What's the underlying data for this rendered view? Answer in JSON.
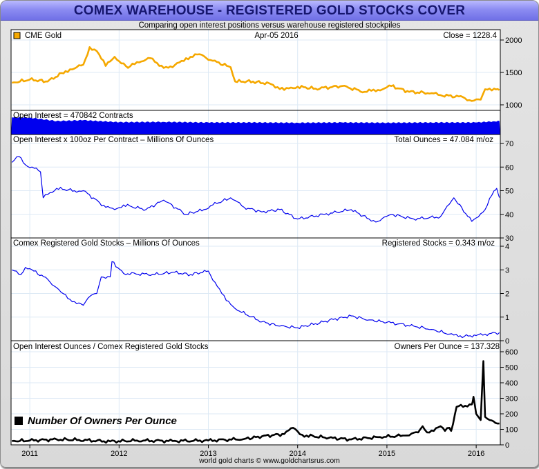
{
  "title": "COMEX WAREHOUSE - REGISTERED GOLD STOCKS COVER",
  "subtitle": "Comparing open interest positions versus warehouse registered stockpiles",
  "footer": "world gold charts © www.goldchartsrus.com",
  "colors": {
    "gold": "#f5a800",
    "blue": "#0000ee",
    "black": "#000000",
    "grid": "#dde9f5",
    "titlebar": "#8080ee",
    "title_text": "#16166e"
  },
  "chart_data": [
    {
      "type": "line",
      "panel": "gold_price",
      "legend": "CME Gold",
      "date_label": "Apr-05  2016",
      "value_label": "Close = 1228.4",
      "ylim": [
        1000,
        2000
      ],
      "yticks": [
        1000,
        1500,
        2000
      ],
      "x": [
        2010.8,
        2011.0,
        2011.2,
        2011.4,
        2011.5,
        2011.6,
        2011.67,
        2011.75,
        2011.85,
        2011.95,
        2012.1,
        2012.2,
        2012.35,
        2012.45,
        2012.6,
        2012.75,
        2012.9,
        2013.05,
        2013.25,
        2013.3,
        2013.5,
        2013.7,
        2013.85,
        2014.0,
        2014.2,
        2014.5,
        2014.75,
        2014.9,
        2015.05,
        2015.25,
        2015.5,
        2015.6,
        2015.85,
        2015.95,
        2016.05,
        2016.1,
        2016.2,
        2016.26
      ],
      "values": [
        1340,
        1390,
        1360,
        1520,
        1560,
        1620,
        1890,
        1830,
        1600,
        1740,
        1570,
        1660,
        1720,
        1600,
        1580,
        1720,
        1780,
        1680,
        1580,
        1360,
        1360,
        1320,
        1230,
        1280,
        1250,
        1290,
        1200,
        1230,
        1290,
        1200,
        1180,
        1150,
        1120,
        1060,
        1080,
        1240,
        1250,
        1228.4
      ]
    },
    {
      "type": "area",
      "panel": "open_interest_contracts",
      "label": "Open Interest = 470842 Contracts",
      "x": [
        2010.8,
        2011.0,
        2011.3,
        2011.6,
        2012.0,
        2012.5,
        2013.0,
        2013.5,
        2014.0,
        2014.5,
        2015.0,
        2015.5,
        2016.0,
        2016.2,
        2016.26
      ],
      "values": [
        600000,
        590000,
        470000,
        500000,
        430000,
        440000,
        420000,
        420000,
        410000,
        420000,
        410000,
        420000,
        420000,
        460000,
        470842
      ]
    },
    {
      "type": "line",
      "panel": "open_interest_ounces",
      "label": "Open Interest x 100oz Per Contract – Millions Of Ounces",
      "value_label": "Total Ounces = 47.084 m/oz",
      "ylim": [
        30,
        70
      ],
      "yticks": [
        30,
        40,
        50,
        60,
        70
      ],
      "x": [
        2010.8,
        2010.88,
        2010.95,
        2011.05,
        2011.12,
        2011.15,
        2011.3,
        2011.5,
        2011.6,
        2011.85,
        2011.95,
        2012.05,
        2012.3,
        2012.5,
        2012.75,
        2012.95,
        2013.05,
        2013.25,
        2013.4,
        2013.6,
        2013.8,
        2014.0,
        2014.3,
        2014.6,
        2014.8,
        2014.9,
        2015.05,
        2015.3,
        2015.6,
        2015.75,
        2015.95,
        2016.1,
        2016.2,
        2016.23,
        2016.26
      ],
      "values": [
        62,
        64.5,
        61,
        59.5,
        58,
        47,
        51,
        50,
        50,
        43,
        42,
        44,
        42,
        46,
        40,
        42,
        44,
        47,
        43,
        41,
        42,
        38,
        40,
        42,
        38,
        37,
        40,
        38,
        39,
        47,
        37,
        42,
        50,
        51,
        47.084
      ]
    },
    {
      "type": "line",
      "panel": "registered_stocks",
      "label": "Comex Registered Gold Stocks – Millions Of Ounces",
      "value_label": "Registered Stocks = 0.343 m/oz",
      "ylim": [
        0,
        4
      ],
      "yticks": [
        0,
        1,
        2,
        3,
        4
      ],
      "x": [
        2010.8,
        2010.9,
        2010.95,
        2011.0,
        2011.2,
        2011.35,
        2011.45,
        2011.6,
        2011.68,
        2011.75,
        2011.8,
        2011.9,
        2011.92,
        2012.05,
        2012.4,
        2012.6,
        2012.8,
        2013.0,
        2013.1,
        2013.2,
        2013.35,
        2013.6,
        2013.8,
        2014.0,
        2014.2,
        2014.4,
        2014.6,
        2014.8,
        2015.0,
        2015.3,
        2015.5,
        2015.7,
        2015.8,
        2016.0,
        2016.1,
        2016.26
      ],
      "values": [
        3.0,
        2.8,
        3.1,
        3.05,
        2.6,
        2.05,
        1.75,
        1.5,
        1.9,
        2.0,
        2.7,
        2.7,
        3.35,
        2.85,
        2.8,
        2.9,
        2.8,
        2.95,
        2.3,
        1.7,
        1.25,
        0.8,
        0.62,
        0.55,
        0.72,
        0.9,
        1.05,
        0.88,
        0.78,
        0.62,
        0.48,
        0.28,
        0.18,
        0.22,
        0.28,
        0.343
      ]
    },
    {
      "type": "line",
      "panel": "owners_per_ounce",
      "label": "Open Interest Ounces / Comex Registered Gold Stocks",
      "value_label": "Owners Per Ounce = 137.328",
      "legend": "Number Of Owners Per Ounce",
      "ylim": [
        0,
        600
      ],
      "yticks": [
        0,
        100,
        200,
        300,
        400,
        500,
        600
      ],
      "x": [
        2010.8,
        2011.0,
        2011.3,
        2011.55,
        2011.9,
        2012.2,
        2012.6,
        2013.0,
        2013.4,
        2013.6,
        2013.85,
        2013.95,
        2014.05,
        2014.1,
        2014.35,
        2014.6,
        2014.9,
        2015.2,
        2015.35,
        2015.4,
        2015.45,
        2015.6,
        2015.65,
        2015.7,
        2015.72,
        2015.78,
        2015.95,
        2015.97,
        2016.0,
        2016.05,
        2016.08,
        2016.1,
        2016.15,
        2016.26
      ],
      "values": [
        25,
        28,
        35,
        32,
        22,
        28,
        25,
        28,
        38,
        55,
        70,
        110,
        65,
        60,
        45,
        35,
        50,
        60,
        80,
        120,
        80,
        120,
        90,
        110,
        90,
        245,
        260,
        310,
        200,
        160,
        540,
        180,
        160,
        137.328
      ]
    }
  ],
  "x_axis": {
    "labels": [
      "2011",
      "2012",
      "2013",
      "2014",
      "2015",
      "2016"
    ]
  }
}
